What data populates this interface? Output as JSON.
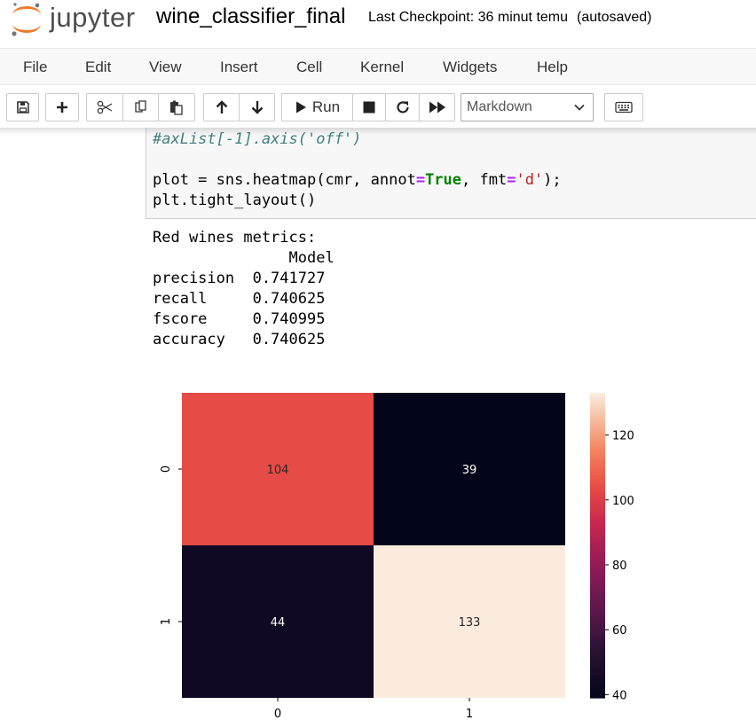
{
  "header": {
    "logo_text": "jupyter",
    "notebook_name": "wine_classifier_final",
    "checkpoint": "Last Checkpoint: 36 minut temu",
    "autosaved": "(autosaved)"
  },
  "menu": [
    "File",
    "Edit",
    "View",
    "Insert",
    "Cell",
    "Kernel",
    "Widgets",
    "Help"
  ],
  "toolbar": {
    "run_label": "Run",
    "cell_type": "Markdown",
    "icons": [
      "save-icon",
      "plus-icon",
      "cut-icon",
      "copy-icon",
      "paste-icon",
      "arrow-up-icon",
      "arrow-down-icon",
      "play-icon",
      "stop-icon",
      "restart-icon",
      "fast-forward-icon",
      "chevron-down-icon",
      "keyboard-icon"
    ]
  },
  "code": {
    "line1": "#axList[-1].axis('off')",
    "line2_a": "plot = sns.heatmap(cmr, annot",
    "line2_eq1": "=",
    "line2_true": "True",
    "line2_b": ", fmt",
    "line2_eq2": "=",
    "line2_str": "'d'",
    "line2_c": ");",
    "line3": "plt.tight_layout()"
  },
  "output": {
    "lines": [
      "Red wines metrics:",
      "               Model",
      "precision  0.741727",
      "recall     0.740625",
      "fscore     0.740995",
      "accuracy   0.740625"
    ]
  },
  "chart_data": {
    "type": "heatmap",
    "x_tick_labels": [
      "0",
      "1"
    ],
    "y_tick_labels": [
      "0",
      "1"
    ],
    "values": [
      [
        104,
        39
      ],
      [
        44,
        133
      ]
    ],
    "colorbar": {
      "min": 39,
      "max": 133,
      "ticks": [
        40,
        60,
        80,
        100,
        120
      ]
    },
    "colormap": "rocket",
    "colors": {
      "104": "#f06c4c",
      "39": "#03051a",
      "44": "#150e27",
      "133": "#faebdd"
    }
  }
}
